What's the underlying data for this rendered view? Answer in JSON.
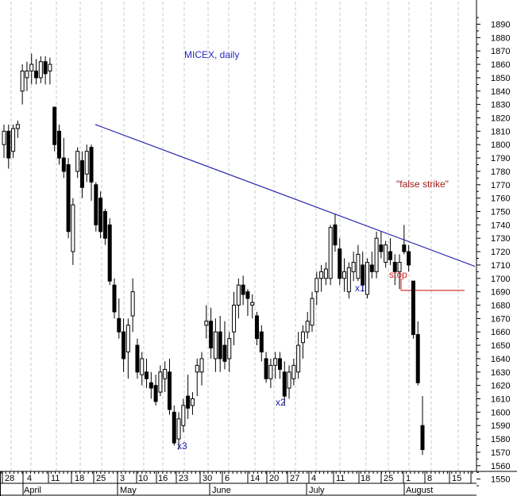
{
  "chart_data": {
    "type": "candlestick",
    "title": "MICEX, daily",
    "ylim": [
      1540,
      1897
    ],
    "y_ticks": [
      1550,
      1560,
      1570,
      1580,
      1590,
      1600,
      1610,
      1620,
      1630,
      1640,
      1650,
      1660,
      1670,
      1680,
      1690,
      1700,
      1710,
      1720,
      1730,
      1740,
      1750,
      1760,
      1770,
      1780,
      1790,
      1800,
      1810,
      1820,
      1830,
      1840,
      1850,
      1860,
      1870,
      1880,
      1890
    ],
    "x_day_ticks": [
      "28",
      "4",
      "11",
      "18",
      "25",
      "3",
      "10",
      "16",
      "23",
      "30",
      "6",
      "14",
      "20",
      "27",
      "4",
      "11",
      "18",
      "25",
      "1",
      "8",
      "15"
    ],
    "x_month_labels": [
      "April",
      "May",
      "June",
      "July",
      "August"
    ],
    "grid": "vertical dashed",
    "colors": {
      "trendline": "#1a1aa8",
      "title": "#2828c8",
      "label": "#1a1aa8",
      "annotation": "#a01818",
      "stop_line": "#cc2222"
    },
    "candles": [
      {
        "o": 1800,
        "h": 1815,
        "l": 1790,
        "c": 1810
      },
      {
        "o": 1810,
        "h": 1815,
        "l": 1782,
        "c": 1790
      },
      {
        "o": 1795,
        "h": 1815,
        "l": 1790,
        "c": 1812
      },
      {
        "o": 1812,
        "h": 1818,
        "l": 1805,
        "c": 1815
      },
      {
        "o": 1840,
        "h": 1860,
        "l": 1830,
        "c": 1855
      },
      {
        "o": 1850,
        "h": 1862,
        "l": 1840,
        "c": 1855
      },
      {
        "o": 1855,
        "h": 1868,
        "l": 1845,
        "c": 1860
      },
      {
        "o": 1855,
        "h": 1864,
        "l": 1845,
        "c": 1850
      },
      {
        "o": 1850,
        "h": 1866,
        "l": 1846,
        "c": 1862
      },
      {
        "o": 1862,
        "h": 1866,
        "l": 1845,
        "c": 1853
      },
      {
        "o": 1855,
        "h": 1865,
        "l": 1845,
        "c": 1860
      },
      {
        "o": 1828,
        "h": 1828,
        "l": 1795,
        "c": 1800
      },
      {
        "o": 1810,
        "h": 1815,
        "l": 1785,
        "c": 1790
      },
      {
        "o": 1790,
        "h": 1805,
        "l": 1775,
        "c": 1780
      },
      {
        "o": 1785,
        "h": 1790,
        "l": 1730,
        "c": 1735
      },
      {
        "o": 1720,
        "h": 1760,
        "l": 1710,
        "c": 1755
      },
      {
        "o": 1780,
        "h": 1798,
        "l": 1775,
        "c": 1795
      },
      {
        "o": 1788,
        "h": 1795,
        "l": 1760,
        "c": 1768
      },
      {
        "o": 1778,
        "h": 1800,
        "l": 1772,
        "c": 1795
      },
      {
        "o": 1798,
        "h": 1800,
        "l": 1758,
        "c": 1772
      },
      {
        "o": 1770,
        "h": 1772,
        "l": 1735,
        "c": 1740
      },
      {
        "o": 1760,
        "h": 1765,
        "l": 1730,
        "c": 1735
      },
      {
        "o": 1750,
        "h": 1752,
        "l": 1725,
        "c": 1730
      },
      {
        "o": 1740,
        "h": 1745,
        "l": 1695,
        "c": 1698
      },
      {
        "o": 1695,
        "h": 1700,
        "l": 1670,
        "c": 1675
      },
      {
        "o": 1670,
        "h": 1685,
        "l": 1655,
        "c": 1660
      },
      {
        "o": 1660,
        "h": 1670,
        "l": 1630,
        "c": 1640
      },
      {
        "o": 1645,
        "h": 1670,
        "l": 1625,
        "c": 1665
      },
      {
        "o": 1672,
        "h": 1700,
        "l": 1660,
        "c": 1690
      },
      {
        "o": 1650,
        "h": 1655,
        "l": 1625,
        "c": 1630
      },
      {
        "o": 1628,
        "h": 1645,
        "l": 1620,
        "c": 1640
      },
      {
        "o": 1630,
        "h": 1640,
        "l": 1618,
        "c": 1625
      },
      {
        "o": 1622,
        "h": 1630,
        "l": 1610,
        "c": 1618
      },
      {
        "o": 1620,
        "h": 1628,
        "l": 1605,
        "c": 1608
      },
      {
        "o": 1615,
        "h": 1635,
        "l": 1612,
        "c": 1630
      },
      {
        "o": 1625,
        "h": 1638,
        "l": 1615,
        "c": 1632
      },
      {
        "o": 1630,
        "h": 1640,
        "l": 1598,
        "c": 1602
      },
      {
        "o": 1600,
        "h": 1605,
        "l": 1575,
        "c": 1577
      },
      {
        "o": 1580,
        "h": 1600,
        "l": 1572,
        "c": 1595
      },
      {
        "o": 1590,
        "h": 1610,
        "l": 1585,
        "c": 1605
      },
      {
        "o": 1612,
        "h": 1628,
        "l": 1595,
        "c": 1603
      },
      {
        "o": 1605,
        "h": 1615,
        "l": 1598,
        "c": 1610
      },
      {
        "o": 1630,
        "h": 1640,
        "l": 1612,
        "c": 1635
      },
      {
        "o": 1630,
        "h": 1645,
        "l": 1620,
        "c": 1640
      },
      {
        "o": 1665,
        "h": 1680,
        "l": 1655,
        "c": 1668
      },
      {
        "o": 1668,
        "h": 1678,
        "l": 1640,
        "c": 1648
      },
      {
        "o": 1640,
        "h": 1670,
        "l": 1630,
        "c": 1660
      },
      {
        "o": 1660,
        "h": 1672,
        "l": 1630,
        "c": 1640
      },
      {
        "o": 1650,
        "h": 1668,
        "l": 1632,
        "c": 1638
      },
      {
        "o": 1640,
        "h": 1660,
        "l": 1630,
        "c": 1655
      },
      {
        "o": 1660,
        "h": 1690,
        "l": 1650,
        "c": 1680
      },
      {
        "o": 1680,
        "h": 1700,
        "l": 1670,
        "c": 1695
      },
      {
        "o": 1695,
        "h": 1702,
        "l": 1680,
        "c": 1688
      },
      {
        "o": 1690,
        "h": 1692,
        "l": 1672,
        "c": 1685
      },
      {
        "o": 1680,
        "h": 1688,
        "l": 1670,
        "c": 1682
      },
      {
        "o": 1672,
        "h": 1675,
        "l": 1650,
        "c": 1655
      },
      {
        "o": 1660,
        "h": 1665,
        "l": 1638,
        "c": 1645
      },
      {
        "o": 1640,
        "h": 1645,
        "l": 1622,
        "c": 1625
      },
      {
        "o": 1625,
        "h": 1640,
        "l": 1618,
        "c": 1635
      },
      {
        "o": 1635,
        "h": 1645,
        "l": 1625,
        "c": 1640
      },
      {
        "o": 1640,
        "h": 1645,
        "l": 1625,
        "c": 1632
      },
      {
        "o": 1630,
        "h": 1638,
        "l": 1605,
        "c": 1612
      },
      {
        "o": 1618,
        "h": 1635,
        "l": 1610,
        "c": 1630
      },
      {
        "o": 1625,
        "h": 1640,
        "l": 1620,
        "c": 1635
      },
      {
        "o": 1630,
        "h": 1660,
        "l": 1625,
        "c": 1650
      },
      {
        "o": 1652,
        "h": 1665,
        "l": 1640,
        "c": 1660
      },
      {
        "o": 1660,
        "h": 1675,
        "l": 1655,
        "c": 1668
      },
      {
        "o": 1665,
        "h": 1690,
        "l": 1660,
        "c": 1685
      },
      {
        "o": 1690,
        "h": 1705,
        "l": 1680,
        "c": 1700
      },
      {
        "o": 1700,
        "h": 1710,
        "l": 1690,
        "c": 1705
      },
      {
        "o": 1700,
        "h": 1712,
        "l": 1695,
        "c": 1707
      },
      {
        "o": 1700,
        "h": 1740,
        "l": 1695,
        "c": 1738
      },
      {
        "o": 1740,
        "h": 1748,
        "l": 1720,
        "c": 1725
      },
      {
        "o": 1722,
        "h": 1730,
        "l": 1695,
        "c": 1700
      },
      {
        "o": 1700,
        "h": 1715,
        "l": 1690,
        "c": 1705
      },
      {
        "o": 1690,
        "h": 1712,
        "l": 1685,
        "c": 1708
      },
      {
        "o": 1705,
        "h": 1720,
        "l": 1698,
        "c": 1712
      },
      {
        "o": 1700,
        "h": 1725,
        "l": 1698,
        "c": 1718
      },
      {
        "o": 1710,
        "h": 1720,
        "l": 1690,
        "c": 1695
      },
      {
        "o": 1688,
        "h": 1715,
        "l": 1685,
        "c": 1712
      },
      {
        "o": 1710,
        "h": 1720,
        "l": 1700,
        "c": 1705
      },
      {
        "o": 1705,
        "h": 1735,
        "l": 1700,
        "c": 1730
      },
      {
        "o": 1725,
        "h": 1735,
        "l": 1715,
        "c": 1720
      },
      {
        "o": 1712,
        "h": 1728,
        "l": 1708,
        "c": 1725
      },
      {
        "o": 1720,
        "h": 1730,
        "l": 1710,
        "c": 1714
      },
      {
        "o": 1712,
        "h": 1718,
        "l": 1695,
        "c": 1705
      },
      {
        "o": 1705,
        "h": 1718,
        "l": 1692,
        "c": 1712
      },
      {
        "o": 1725,
        "h": 1740,
        "l": 1718,
        "c": 1720
      },
      {
        "o": 1720,
        "h": 1725,
        "l": 1705,
        "c": 1710
      },
      {
        "o": 1698,
        "h": 1698,
        "l": 1655,
        "c": 1658
      },
      {
        "o": 1658,
        "h": 1668,
        "l": 1620,
        "c": 1622
      },
      {
        "o": 1590,
        "h": 1612,
        "l": 1568,
        "c": 1572
      }
    ]
  },
  "annotations": {
    "x1": "x1",
    "x2": "x2",
    "x3": "x3",
    "false_strike": "\"false strike\"",
    "stop": "stop"
  }
}
